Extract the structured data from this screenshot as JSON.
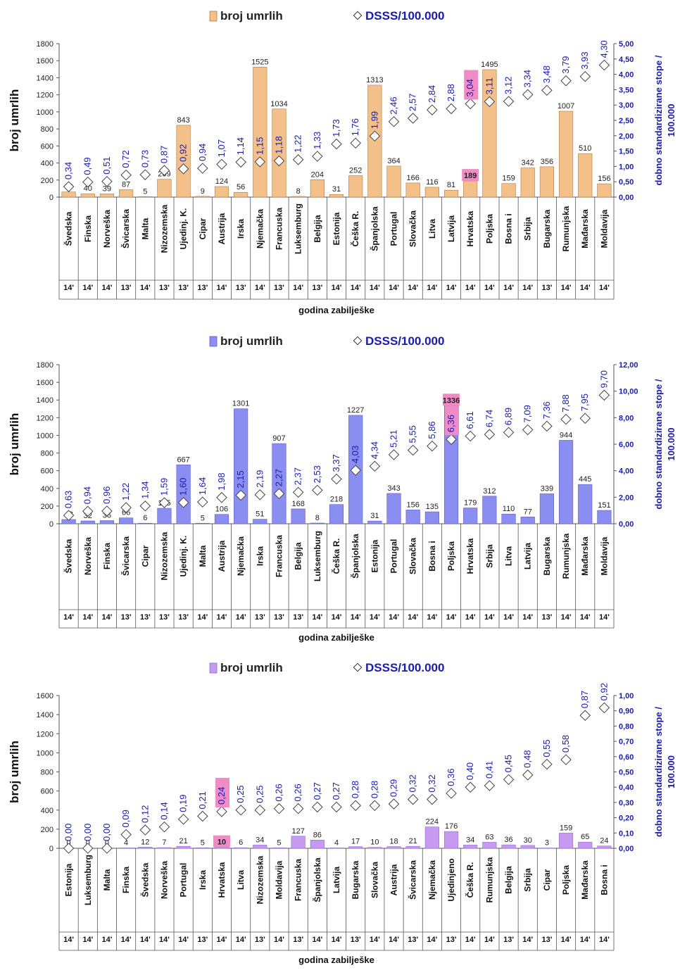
{
  "chart_data": [
    {
      "type": "bar",
      "legend": {
        "bar_label": "broj umrlih",
        "marker_label": "DSSS/100.000",
        "placement": "top"
      },
      "xlabel": "godina zabilješke",
      "ylabel_left": "broj umrlih",
      "ylabel_right": "dobno standardizirane stope / 100.000",
      "ylim_left": [
        0,
        1800
      ],
      "left_ticks": [
        "0",
        "200",
        "400",
        "600",
        "800",
        "1000",
        "1200",
        "1400",
        "1600",
        "1800"
      ],
      "ylim_right": [
        0,
        5
      ],
      "right_ticks": [
        "0,00",
        "0,50",
        "1,00",
        "1,50",
        "2,00",
        "2,50",
        "3,00",
        "3,50",
        "4,00",
        "4,50",
        "5,00"
      ],
      "bar_color": "#f4c08a",
      "bar_stroke": "#b07a40",
      "highlight_color": "#f08bc6",
      "highlight_index": 21,
      "categories": [
        "Švedska",
        "Finska",
        "Norveška",
        "Švicarska",
        "Malta",
        "Nizozemska",
        "Ujedinj. K.",
        "Cipar",
        "Austrija",
        "Irska",
        "Njemačka",
        "Francuska",
        "Luksemburg",
        "Belgija",
        "Estonija",
        "Češka R.",
        "Španjolska",
        "Portugal",
        "Slovačka",
        "Litva",
        "Latvija",
        "Hrvatska",
        "Poljska",
        "Bosna i",
        "Srbija",
        "Bugarska",
        "Rumunjska",
        "Mađarska",
        "Moldavija"
      ],
      "years": [
        "14'",
        "14'",
        "14'",
        "13'",
        "14'",
        "13'",
        "13'",
        "13'",
        "14'",
        "13'",
        "14'",
        "13'",
        "14'",
        "13'",
        "14'",
        "14'",
        "14'",
        "14'",
        "14'",
        "14'",
        "14'",
        "14'",
        "14'",
        "14'",
        "14'",
        "13'",
        "14'",
        "14'",
        "14'"
      ],
      "deaths": [
        60,
        40,
        39,
        87,
        5,
        209,
        843,
        9,
        124,
        56,
        1525,
        1034,
        8,
        204,
        31,
        252,
        1313,
        364,
        166,
        116,
        81,
        189,
        1495,
        159,
        342,
        356,
        1007,
        510,
        156
      ],
      "rates": [
        0.34,
        0.49,
        0.51,
        0.72,
        0.73,
        0.87,
        0.92,
        0.94,
        1.07,
        1.14,
        1.15,
        1.18,
        1.22,
        1.33,
        1.73,
        1.76,
        1.99,
        2.46,
        2.57,
        2.84,
        2.88,
        3.04,
        3.11,
        3.12,
        3.34,
        3.48,
        3.79,
        3.93,
        4.3
      ],
      "rate_labels": [
        "0,34",
        "0,49",
        "0,51",
        "0,72",
        "0,73",
        "0,87",
        "0,92",
        "0,94",
        "1,07",
        "1,14",
        "1,15",
        "1,18",
        "1,22",
        "1,33",
        "1,73",
        "1,76",
        "1,99",
        "2,46",
        "2,57",
        "2,84",
        "2,88",
        "3,04",
        "3,11",
        "3,12",
        "3,34",
        "3,48",
        "3,79",
        "3,93",
        "4,30"
      ]
    },
    {
      "type": "bar",
      "legend": {
        "bar_label": "broj umrlih",
        "marker_label": "DSSS/100.000",
        "placement": "top"
      },
      "xlabel": "godina zabilješke",
      "ylabel_left": "broj umrlih",
      "ylabel_right": "dobno standardizirane stope / 100.000",
      "ylim_left": [
        0,
        1800
      ],
      "left_ticks": [
        "0",
        "200",
        "400",
        "600",
        "800",
        "1000",
        "1200",
        "1400",
        "1600",
        "1800"
      ],
      "ylim_right": [
        0,
        12
      ],
      "right_ticks": [
        "0,00",
        "2,00",
        "4,00",
        "6,00",
        "8,00",
        "10,00",
        "12,00"
      ],
      "bar_color": "#8a8ef0",
      "bar_stroke": "#5a5ec8",
      "highlight_color": "#f08bc6",
      "highlight_index": 20,
      "categories": [
        "Švedska",
        "Norveška",
        "Finska",
        "Švicarska",
        "Cipar",
        "Nizozemska",
        "Ujedinj. K.",
        "Malta",
        "Austrija",
        "Njemačka",
        "Irska",
        "Francuska",
        "Belgija",
        "Luksemburg",
        "Češka R.",
        "Španjolska",
        "Estonija",
        "Portugal",
        "Slovačka",
        "Bosna i",
        "Poljska",
        "Hrvatska",
        "Srbija",
        "Litva",
        "Latvija",
        "Bugarska",
        "Rumunjska",
        "Mađarska",
        "Moldavija"
      ],
      "years": [
        "14'",
        "14'",
        "14'",
        "13'",
        "13'",
        "13'",
        "13'",
        "14'",
        "14'",
        "14'",
        "13'",
        "13'",
        "13'",
        "14'",
        "14'",
        "14'",
        "14'",
        "14'",
        "14'",
        "14'",
        "14'",
        "14'",
        "14'",
        "14'",
        "14'",
        "13'",
        "14'",
        "14'",
        "14'"
      ],
      "deaths": [
        48,
        32,
        36,
        66,
        6,
        175,
        667,
        5,
        106,
        1301,
        51,
        907,
        168,
        8,
        218,
        1227,
        31,
        343,
        156,
        135,
        1336,
        179,
        312,
        110,
        77,
        339,
        944,
        445,
        151
      ],
      "rates": [
        0.63,
        0.94,
        0.96,
        1.22,
        1.34,
        1.59,
        1.6,
        1.64,
        1.98,
        2.15,
        2.19,
        2.27,
        2.37,
        2.53,
        3.37,
        4.03,
        4.34,
        5.21,
        5.55,
        5.86,
        6.36,
        6.61,
        6.74,
        6.89,
        7.09,
        7.36,
        7.88,
        7.95,
        9.7
      ],
      "rate_labels": [
        "0,63",
        "0,94",
        "0,96",
        "1,22",
        "1,34",
        "1,59",
        "1,60",
        "1,64",
        "1,98",
        "2,15",
        "2,19",
        "2,27",
        "2,37",
        "2,53",
        "3,37",
        "4,03",
        "4,34",
        "5,21",
        "5,55",
        "5,86",
        "6,36",
        "6,61",
        "6,74",
        "6,89",
        "7,09",
        "7,36",
        "7,88",
        "7,95",
        "9,70"
      ]
    },
    {
      "type": "bar",
      "legend": {
        "bar_label": "broj umrlih",
        "marker_label": "DSSS/100.000",
        "placement": "top"
      },
      "xlabel": "godina zabilješke",
      "ylabel_left": "broj umrlih",
      "ylabel_right": "dobno standardizirane stope / 100.000",
      "ylim_left": [
        0,
        1600
      ],
      "left_ticks": [
        "0",
        "200",
        "400",
        "600",
        "800",
        "1000",
        "1200",
        "1400",
        "1600"
      ],
      "ylim_right": [
        0,
        1
      ],
      "right_ticks": [
        "0,00",
        "0,10",
        "0,20",
        "0,30",
        "0,40",
        "0,50",
        "0,60",
        "0,70",
        "0,80",
        "0,90",
        "1,00"
      ],
      "bar_color": "#c59af0",
      "bar_stroke": "#9a6ad0",
      "highlight_color": "#f08bc6",
      "highlight_index": 8,
      "categories": [
        "Estonija",
        "Luksemburg",
        "Malta",
        "Finska",
        "Švedska",
        "Norveška",
        "Portugal",
        "Irska",
        "Hrvatska",
        "Litva",
        "Nizozemska",
        "Moldavija",
        "Francuska",
        "Španjolska",
        "Latvija",
        "Bugarska",
        "Slovačka",
        "Austrija",
        "Švicarska",
        "Njemačka",
        "Ujedinjeno",
        "Češka R.",
        "Rumunjska",
        "Belgija",
        "Srbija",
        "Cipar",
        "Poljska",
        "Mađarska",
        "Bosna i"
      ],
      "years": [
        "14'",
        "14'",
        "14'",
        "14'",
        "14'",
        "14'",
        "14'",
        "13'",
        "14'",
        "14'",
        "13'",
        "14'",
        "13'",
        "14'",
        "14'",
        "13'",
        "14'",
        "14'",
        "13'",
        "14'",
        "13'",
        "14'",
        "14'",
        "13'",
        "14'",
        "13'",
        "14'",
        "14'",
        "14'"
      ],
      "deaths": [
        0,
        0,
        0,
        4,
        12,
        7,
        21,
        5,
        10,
        6,
        34,
        5,
        127,
        86,
        4,
        17,
        10,
        18,
        21,
        224,
        176,
        34,
        63,
        36,
        30,
        3,
        159,
        65,
        24
      ],
      "rates": [
        0.0,
        0.0,
        0.0,
        0.09,
        0.12,
        0.14,
        0.19,
        0.21,
        0.24,
        0.25,
        0.25,
        0.26,
        0.26,
        0.27,
        0.27,
        0.28,
        0.28,
        0.29,
        0.32,
        0.32,
        0.36,
        0.4,
        0.41,
        0.45,
        0.48,
        0.55,
        0.58,
        0.87,
        0.92
      ],
      "rate_labels": [
        "0,00",
        "0,00",
        "0,00",
        "0,09",
        "0,12",
        "0,14",
        "0,19",
        "0,21",
        "0,24",
        "0,25",
        "0,25",
        "0,26",
        "0,26",
        "0,27",
        "0,27",
        "0,28",
        "0,28",
        "0,29",
        "0,32",
        "0,32",
        "0,36",
        "0,40",
        "0,41",
        "0,45",
        "0,48",
        "0,55",
        "0,58",
        "0,87",
        "0,92"
      ]
    }
  ]
}
